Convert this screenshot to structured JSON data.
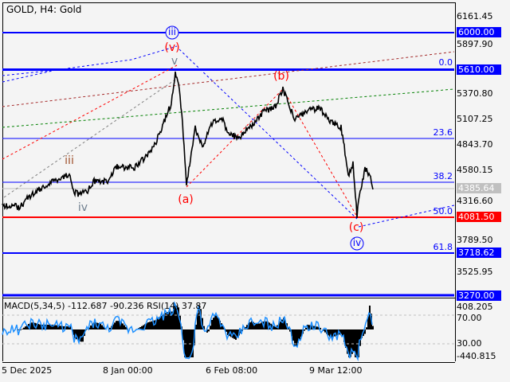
{
  "header": {
    "title": "GOLD, H4:  Gold"
  },
  "price_axis": {
    "ticks": [
      "6161.45",
      "5897.90",
      "5370.80",
      "5107.25",
      "4843.70",
      "4580.15",
      "4316.60",
      "3789.50",
      "3525.95"
    ]
  },
  "levels": [
    {
      "label": "6000.00",
      "color": "#0000ff"
    },
    {
      "label": "5610.00",
      "color": "#0000ff"
    },
    {
      "label": "4385.64",
      "color": "#c0c0c0"
    },
    {
      "label": "4081.50",
      "color": "#ff0000"
    },
    {
      "label": "3718.62",
      "color": "#0000ff"
    },
    {
      "label": "3270.00",
      "color": "#0000ff"
    }
  ],
  "fibonacci": [
    "0.0",
    "23.6",
    "38.2",
    "50.0",
    "61.8"
  ],
  "waves": {
    "iii_circled": "iii",
    "v_paren": "(v)",
    "v": "v",
    "iii": "iii",
    "iv": "iv",
    "a": "(a)",
    "b": "(b)",
    "c": "(c)",
    "iv_circled": "iv"
  },
  "indicator": {
    "label": "MACD(5,34,5) -112.687 -90.236 RSI(14) 37.87",
    "ticks": [
      "408.205",
      "70.00",
      "30.00",
      "-440.815"
    ]
  },
  "time_axis": [
    "5 Dec 2025",
    "8 Jan 00:00",
    "6 Feb 08:00",
    "9 Mar 12:00"
  ]
}
